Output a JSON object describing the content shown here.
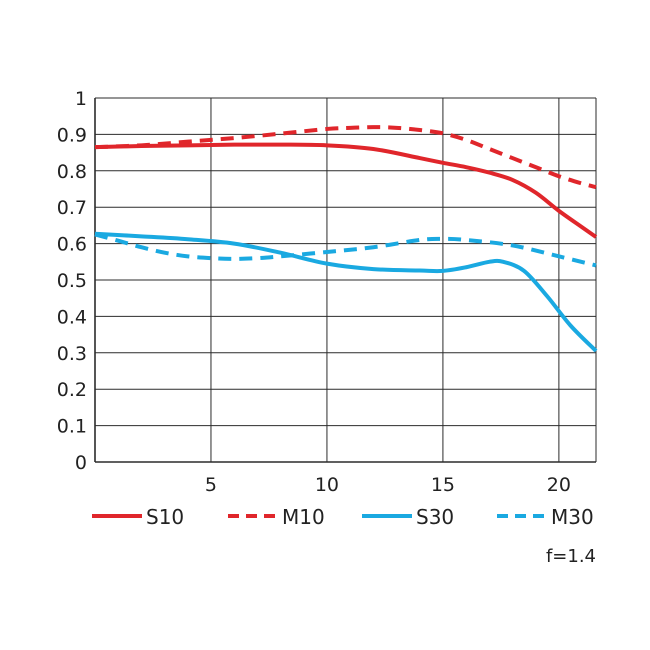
{
  "chart_data": {
    "type": "line",
    "title": "",
    "xlabel": "",
    "ylabel": "",
    "xlim": [
      0,
      21.6
    ],
    "ylim": [
      0,
      1
    ],
    "grid": true,
    "legend_position": "bottom",
    "x_ticks": [
      5,
      10,
      15,
      20
    ],
    "x_tick_labels": [
      "5",
      "10",
      "15",
      "20"
    ],
    "y_ticks": [
      0,
      0.1,
      0.2,
      0.3,
      0.4,
      0.5,
      0.6,
      0.7,
      0.8,
      0.9,
      1
    ],
    "y_tick_labels": [
      "0",
      "0.1",
      "0.2",
      "0.3",
      "0.4",
      "0.5",
      "0.6",
      "0.7",
      "0.8",
      "0.9",
      "1"
    ],
    "annotation": "f=1.4",
    "series": [
      {
        "name": "S10",
        "color": "#e0262b",
        "style": "solid",
        "x": [
          0,
          2,
          4,
          6,
          8,
          10,
          12,
          14,
          15,
          16,
          17,
          18,
          19,
          20,
          21,
          21.6
        ],
        "y": [
          0.865,
          0.868,
          0.87,
          0.872,
          0.872,
          0.87,
          0.86,
          0.835,
          0.822,
          0.81,
          0.795,
          0.775,
          0.74,
          0.69,
          0.645,
          0.618
        ]
      },
      {
        "name": "M10",
        "color": "#e0262b",
        "style": "dashed",
        "x": [
          0,
          2,
          4,
          6,
          8,
          10,
          11,
          12,
          13,
          14,
          15,
          16,
          17,
          18,
          19,
          20,
          21,
          21.6
        ],
        "y": [
          0.865,
          0.87,
          0.88,
          0.89,
          0.902,
          0.915,
          0.918,
          0.92,
          0.918,
          0.912,
          0.903,
          0.885,
          0.86,
          0.835,
          0.81,
          0.785,
          0.765,
          0.755
        ]
      },
      {
        "name": "S30",
        "color": "#1aa9e1",
        "style": "solid",
        "x": [
          0,
          2,
          4,
          6,
          8,
          10,
          12,
          14,
          15,
          16,
          17,
          17.6,
          18.5,
          19.5,
          20.5,
          21.6
        ],
        "y": [
          0.627,
          0.62,
          0.612,
          0.6,
          0.575,
          0.545,
          0.53,
          0.526,
          0.525,
          0.535,
          0.55,
          0.55,
          0.525,
          0.455,
          0.375,
          0.305
        ]
      },
      {
        "name": "M30",
        "color": "#1aa9e1",
        "style": "dashed",
        "x": [
          0,
          1,
          2,
          3,
          4,
          5,
          6,
          7,
          8,
          10,
          12,
          14,
          15,
          16,
          18,
          20,
          21.6
        ],
        "y": [
          0.625,
          0.608,
          0.59,
          0.575,
          0.565,
          0.56,
          0.558,
          0.56,
          0.565,
          0.577,
          0.59,
          0.61,
          0.613,
          0.61,
          0.595,
          0.565,
          0.54
        ]
      }
    ]
  }
}
